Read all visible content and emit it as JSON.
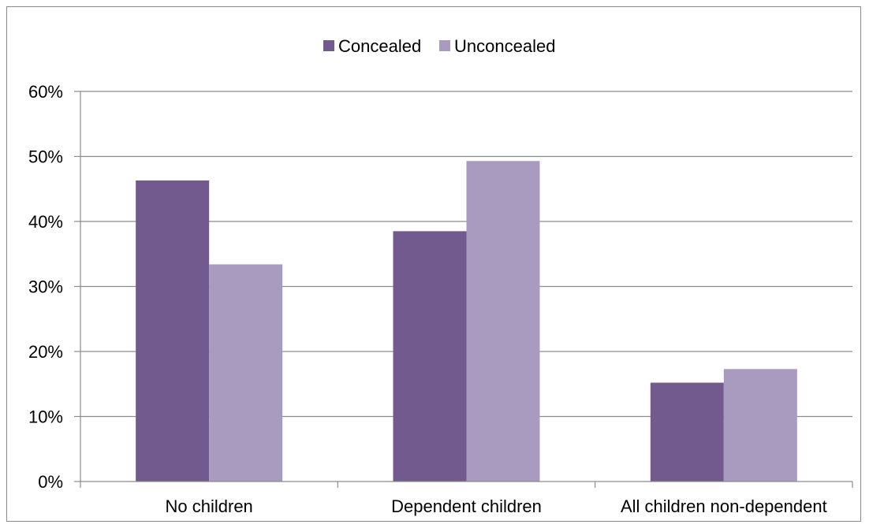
{
  "chart_data": {
    "type": "bar",
    "title": "",
    "xlabel": "",
    "ylabel": "",
    "categories": [
      "No children",
      "Dependent children",
      "All children non-dependent"
    ],
    "series": [
      {
        "name": "Concealed",
        "color": "#72598e",
        "values": [
          46.3,
          38.5,
          15.2
        ]
      },
      {
        "name": "Unconcealed",
        "color": "#a99abf",
        "values": [
          33.4,
          49.3,
          17.3
        ]
      }
    ],
    "ylim": [
      0,
      60
    ],
    "yticks": [
      0,
      10,
      20,
      30,
      40,
      50,
      60
    ],
    "ytick_labels": [
      "0%",
      "10%",
      "20%",
      "30%",
      "40%",
      "50%",
      "60%"
    ],
    "y_unit": "%",
    "grid": true,
    "legend_position": "top"
  }
}
